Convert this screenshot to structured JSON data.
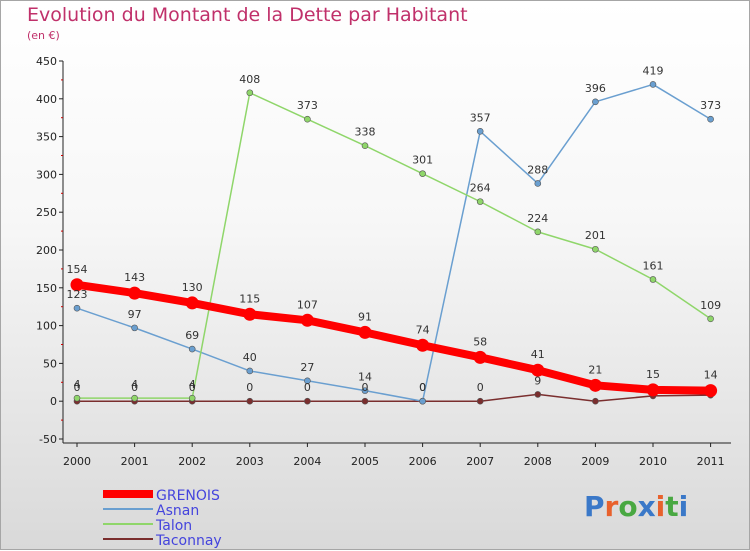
{
  "title": "Evolution du Montant de la Dette par Habitant",
  "subtitle": "(en €)",
  "logo_text": "Proxiti",
  "logo_colors": [
    "#3a78c8",
    "#e8612c",
    "#49a842",
    "#3a78c8",
    "#e8612c",
    "#49a842",
    "#3a78c8"
  ],
  "chart_data": {
    "type": "line",
    "title": "Evolution du Montant de la Dette par Habitant",
    "ylabel": "(en €)",
    "xlabel": "",
    "x": [
      "2000",
      "2001",
      "2002",
      "2003",
      "2004",
      "2005",
      "2006",
      "2007",
      "2008",
      "2009",
      "2010",
      "2011"
    ],
    "ylim": [
      -50,
      450
    ],
    "yticks": [
      -50,
      0,
      50,
      100,
      150,
      200,
      250,
      300,
      350,
      400,
      450
    ],
    "grid": false,
    "legend": "bottom-left",
    "series": [
      {
        "name": "GRENOIS",
        "color": "#ff0000",
        "values": [
          154,
          143,
          130,
          115,
          107,
          91,
          74,
          58,
          41,
          21,
          15,
          14
        ],
        "labels": [
          "154",
          "143",
          "130",
          "115",
          "107",
          "91",
          "74",
          "58",
          "41",
          "21",
          "15",
          "14"
        ]
      },
      {
        "name": "Asnan",
        "color": "#6a9fd0",
        "values": [
          123,
          97,
          69,
          40,
          27,
          14,
          0,
          357,
          288,
          396,
          419,
          373
        ],
        "labels": [
          "123",
          "97",
          "69",
          "40",
          "27",
          "14",
          "0",
          "357",
          "288",
          "396",
          "419",
          "373"
        ]
      },
      {
        "name": "Talon",
        "color": "#8fd66a",
        "values": [
          4,
          4,
          4,
          408,
          373,
          338,
          301,
          264,
          224,
          201,
          161,
          109
        ],
        "labels": [
          "4",
          "4",
          "4",
          "408",
          "373",
          "338",
          "301",
          "264",
          "224",
          "201",
          "161",
          "109"
        ]
      },
      {
        "name": "Taconnay",
        "color": "#7a2e2e",
        "values": [
          0,
          0,
          0,
          0,
          0,
          0,
          0,
          0,
          9,
          0,
          7,
          8
        ],
        "labels": [
          "0",
          "0",
          "0",
          "0",
          "0",
          "0",
          "0",
          "0",
          "9",
          "",
          "",
          ""
        ]
      }
    ]
  }
}
